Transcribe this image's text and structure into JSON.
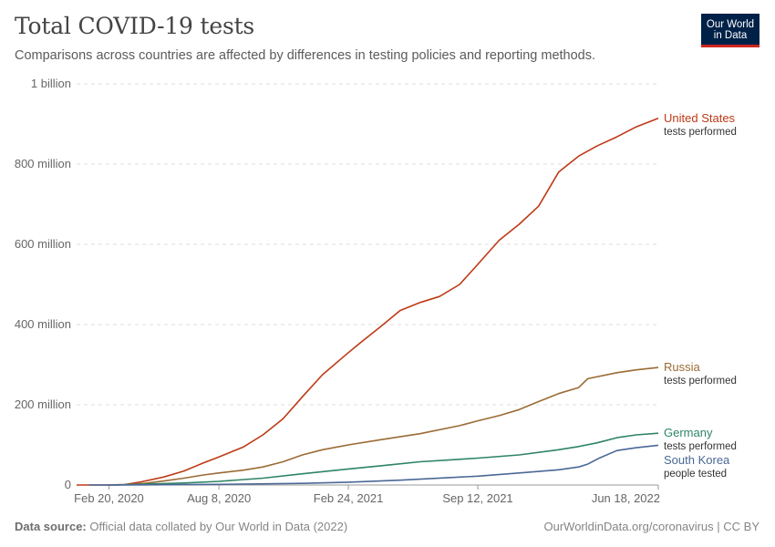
{
  "header": {
    "title": "Total COVID-19 tests",
    "subtitle": "Comparisons across countries are affected by differences in testing policies and reporting methods."
  },
  "logo": {
    "line1": "Our World",
    "line2": "in Data",
    "bg_color": "#002147",
    "accent_color": "#ce261e"
  },
  "footer": {
    "source_label": "Data source:",
    "source_text": "Official data collated by Our World in Data (2022)",
    "right_text": "OurWorldinData.org/coronavirus | CC BY"
  },
  "chart_data": {
    "type": "line",
    "title": "Total COVID-19 tests",
    "xlabel": "",
    "ylabel": "",
    "ylim": [
      0,
      1000000000
    ],
    "xlim": [
      "2020-01-01",
      "2022-06-18"
    ],
    "grid": true,
    "legend": "right (inline labels)",
    "y_ticks": [
      {
        "value": 0,
        "label": "0"
      },
      {
        "value": 200000000,
        "label": "200 million"
      },
      {
        "value": 400000000,
        "label": "400 million"
      },
      {
        "value": 600000000,
        "label": "600 million"
      },
      {
        "value": 800000000,
        "label": "800 million"
      },
      {
        "value": 1000000000,
        "label": "1 billion"
      }
    ],
    "x_ticks": [
      {
        "date": "2020-02-20",
        "label": "Feb 20, 2020"
      },
      {
        "date": "2020-08-08",
        "label": "Aug 8, 2020"
      },
      {
        "date": "2021-02-24",
        "label": "Feb 24, 2021"
      },
      {
        "date": "2021-09-12",
        "label": "Sep 12, 2021"
      },
      {
        "date": "2022-06-18",
        "label": "Jun 18, 2022"
      }
    ],
    "series": [
      {
        "name": "United States",
        "sublabel": "tests performed",
        "color": "#be3a16",
        "points": [
          [
            "2020-01-01",
            0
          ],
          [
            "2020-02-20",
            0
          ],
          [
            "2020-03-15",
            1000000
          ],
          [
            "2020-04-10",
            8000000
          ],
          [
            "2020-05-15",
            20000000
          ],
          [
            "2020-06-15",
            35000000
          ],
          [
            "2020-07-15",
            55000000
          ],
          [
            "2020-08-08",
            70000000
          ],
          [
            "2020-09-15",
            95000000
          ],
          [
            "2020-10-15",
            125000000
          ],
          [
            "2020-11-15",
            165000000
          ],
          [
            "2020-12-15",
            220000000
          ],
          [
            "2021-01-15",
            275000000
          ],
          [
            "2021-02-24",
            330000000
          ],
          [
            "2021-03-15",
            355000000
          ],
          [
            "2021-04-15",
            395000000
          ],
          [
            "2021-05-15",
            435000000
          ],
          [
            "2021-06-15",
            455000000
          ],
          [
            "2021-07-15",
            470000000
          ],
          [
            "2021-08-15",
            500000000
          ],
          [
            "2021-09-12",
            550000000
          ],
          [
            "2021-10-15",
            610000000
          ],
          [
            "2021-11-15",
            650000000
          ],
          [
            "2021-12-15",
            695000000
          ],
          [
            "2022-01-15",
            780000000
          ],
          [
            "2022-02-15",
            820000000
          ],
          [
            "2022-03-15",
            845000000
          ],
          [
            "2022-04-15",
            868000000
          ],
          [
            "2022-05-15",
            893000000
          ],
          [
            "2022-06-18",
            914000000
          ]
        ]
      },
      {
        "name": "Russia",
        "sublabel": "tests performed",
        "color": "#9a6b35",
        "points": [
          [
            "2020-02-20",
            0
          ],
          [
            "2020-03-15",
            1000000
          ],
          [
            "2020-04-15",
            4000000
          ],
          [
            "2020-05-15",
            10000000
          ],
          [
            "2020-06-15",
            17000000
          ],
          [
            "2020-07-15",
            25000000
          ],
          [
            "2020-08-08",
            30000000
          ],
          [
            "2020-09-15",
            37000000
          ],
          [
            "2020-10-15",
            45000000
          ],
          [
            "2020-11-15",
            58000000
          ],
          [
            "2020-12-15",
            75000000
          ],
          [
            "2021-01-15",
            88000000
          ],
          [
            "2021-02-24",
            100000000
          ],
          [
            "2021-04-15",
            113000000
          ],
          [
            "2021-06-15",
            128000000
          ],
          [
            "2021-08-15",
            148000000
          ],
          [
            "2021-09-12",
            160000000
          ],
          [
            "2021-10-15",
            173000000
          ],
          [
            "2021-11-15",
            188000000
          ],
          [
            "2021-12-15",
            208000000
          ],
          [
            "2022-01-15",
            228000000
          ],
          [
            "2022-02-15",
            243000000
          ],
          [
            "2022-03-01",
            265000000
          ],
          [
            "2022-04-15",
            280000000
          ],
          [
            "2022-05-15",
            287000000
          ],
          [
            "2022-06-18",
            293000000
          ]
        ]
      },
      {
        "name": "Germany",
        "sublabel": "tests performed",
        "color": "#2e8465",
        "points": [
          [
            "2020-03-01",
            0
          ],
          [
            "2020-04-15",
            2000000
          ],
          [
            "2020-06-15",
            5000000
          ],
          [
            "2020-08-08",
            9000000
          ],
          [
            "2020-10-15",
            17000000
          ],
          [
            "2020-12-15",
            28000000
          ],
          [
            "2021-02-24",
            40000000
          ],
          [
            "2021-04-15",
            48000000
          ],
          [
            "2021-06-15",
            58000000
          ],
          [
            "2021-08-15",
            64000000
          ],
          [
            "2021-09-12",
            67000000
          ],
          [
            "2021-11-15",
            75000000
          ],
          [
            "2022-01-15",
            88000000
          ],
          [
            "2022-02-15",
            96000000
          ],
          [
            "2022-03-15",
            105000000
          ],
          [
            "2022-04-15",
            118000000
          ],
          [
            "2022-05-15",
            125000000
          ],
          [
            "2022-06-18",
            129000000
          ]
        ]
      },
      {
        "name": "South Korea",
        "sublabel": "people tested",
        "color": "#4a6896",
        "points": [
          [
            "2020-01-20",
            0
          ],
          [
            "2020-04-15",
            500000
          ],
          [
            "2020-08-08",
            1500000
          ],
          [
            "2020-12-15",
            4000000
          ],
          [
            "2021-02-24",
            7000000
          ],
          [
            "2021-05-15",
            12000000
          ],
          [
            "2021-09-12",
            22000000
          ],
          [
            "2021-11-15",
            30000000
          ],
          [
            "2022-01-15",
            38000000
          ],
          [
            "2022-02-15",
            45000000
          ],
          [
            "2022-03-01",
            52000000
          ],
          [
            "2022-03-20",
            68000000
          ],
          [
            "2022-04-15",
            86000000
          ],
          [
            "2022-05-15",
            93000000
          ],
          [
            "2022-06-18",
            99000000
          ]
        ]
      }
    ]
  }
}
